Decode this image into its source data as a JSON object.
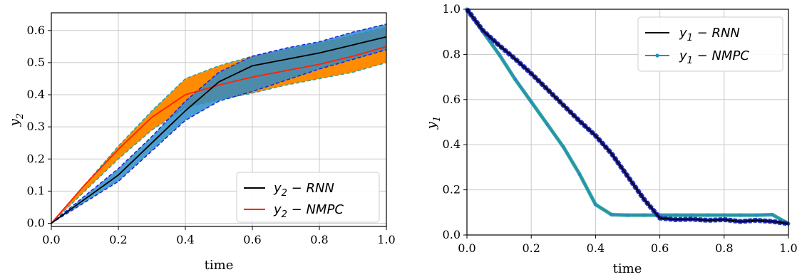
{
  "chart_data": [
    {
      "type": "line",
      "xlabel": "time",
      "ylabel": "y",
      "ylabel_sub": "2",
      "xlim": [
        0.0,
        1.0
      ],
      "ylim": [
        -0.01,
        0.655
      ],
      "xticks": [
        "0.0",
        "0.2",
        "0.4",
        "0.6",
        "0.8",
        "1.0"
      ],
      "yticks": [
        "0.0",
        "0.1",
        "0.2",
        "0.3",
        "0.4",
        "0.5",
        "0.6"
      ],
      "grid": true,
      "legend_position": "lower-right",
      "colors": {
        "rnn": "#000000",
        "nmpc": "#ff2200",
        "band_nmpc": "#ff8c00",
        "band_rnn": "#2d8cc8",
        "band_rnn_edge": "#1f1fe0",
        "band_nmpc_edge": "#2aa5a5"
      },
      "legend": [
        {
          "main": "y",
          "sub": "2",
          "rest": " − RNN",
          "color": "#000000"
        },
        {
          "main": "y",
          "sub": "2",
          "rest": " − NMPC",
          "color": "#ff2200"
        }
      ],
      "x": [
        0.0,
        0.1,
        0.2,
        0.3,
        0.4,
        0.5,
        0.6,
        0.7,
        0.8,
        0.9,
        1.0
      ],
      "series": [
        {
          "name": "y2 − RNN",
          "values": [
            0.0,
            0.075,
            0.15,
            0.25,
            0.35,
            0.44,
            0.49,
            0.51,
            0.53,
            0.555,
            0.58
          ]
        },
        {
          "name": "y2 − NMPC",
          "values": [
            0.0,
            0.12,
            0.23,
            0.33,
            0.4,
            0.43,
            0.455,
            0.475,
            0.495,
            0.52,
            0.55
          ]
        }
      ],
      "bands": {
        "nmpc_upper": [
          0.0,
          0.12,
          0.24,
          0.35,
          0.45,
          0.49,
          0.52,
          0.54,
          0.56,
          0.585,
          0.61
        ],
        "nmpc_lower": [
          0.0,
          0.1,
          0.2,
          0.29,
          0.36,
          0.385,
          0.405,
          0.43,
          0.45,
          0.47,
          0.5
        ],
        "rnn_upper": [
          0.0,
          0.085,
          0.17,
          0.27,
          0.38,
          0.47,
          0.52,
          0.545,
          0.565,
          0.595,
          0.62
        ],
        "rnn_lower": [
          0.0,
          0.065,
          0.13,
          0.225,
          0.32,
          0.38,
          0.41,
          0.445,
          0.48,
          0.51,
          0.54
        ]
      }
    },
    {
      "type": "line",
      "xlabel": "time",
      "ylabel": "y",
      "ylabel_sub": "1",
      "xlim": [
        0.0,
        1.0
      ],
      "ylim": [
        0.0,
        1.0
      ],
      "xticks": [
        "0.0",
        "0.2",
        "0.4",
        "0.6",
        "0.8",
        "1.0"
      ],
      "yticks": [
        "0.0",
        "0.2",
        "0.4",
        "0.6",
        "0.8",
        "1.0"
      ],
      "grid": true,
      "legend_position": "top-right",
      "colors": {
        "rnn": "#000000",
        "nmpc": "#2a8cba",
        "rnn_band": "#1a1a8c",
        "nmpc_band": "#2aa59a"
      },
      "legend": [
        {
          "main": "y",
          "sub": "1",
          "rest": " − RNN",
          "color": "#000000"
        },
        {
          "main": "y",
          "sub": "1",
          "rest": " − NMPC",
          "color": "#2a8cba"
        }
      ],
      "x": [
        0.0,
        0.05,
        0.1,
        0.15,
        0.2,
        0.25,
        0.3,
        0.35,
        0.4,
        0.45,
        0.5,
        0.55,
        0.6,
        0.65,
        0.7,
        0.75,
        0.8,
        0.85,
        0.9,
        0.95,
        1.0
      ],
      "series": [
        {
          "name": "y1 − RNN",
          "values": [
            1.0,
            0.905,
            0.84,
            0.78,
            0.715,
            0.645,
            0.575,
            0.505,
            0.44,
            0.36,
            0.26,
            0.16,
            0.075,
            0.068,
            0.07,
            0.065,
            0.068,
            0.06,
            0.065,
            0.06,
            0.05
          ]
        },
        {
          "name": "y1 − NMPC",
          "values": [
            1.0,
            0.9,
            0.8,
            0.69,
            0.59,
            0.49,
            0.39,
            0.27,
            0.135,
            0.09,
            0.088,
            0.088,
            0.088,
            0.088,
            0.088,
            0.088,
            0.088,
            0.088,
            0.088,
            0.09,
            0.05
          ]
        }
      ]
    }
  ]
}
